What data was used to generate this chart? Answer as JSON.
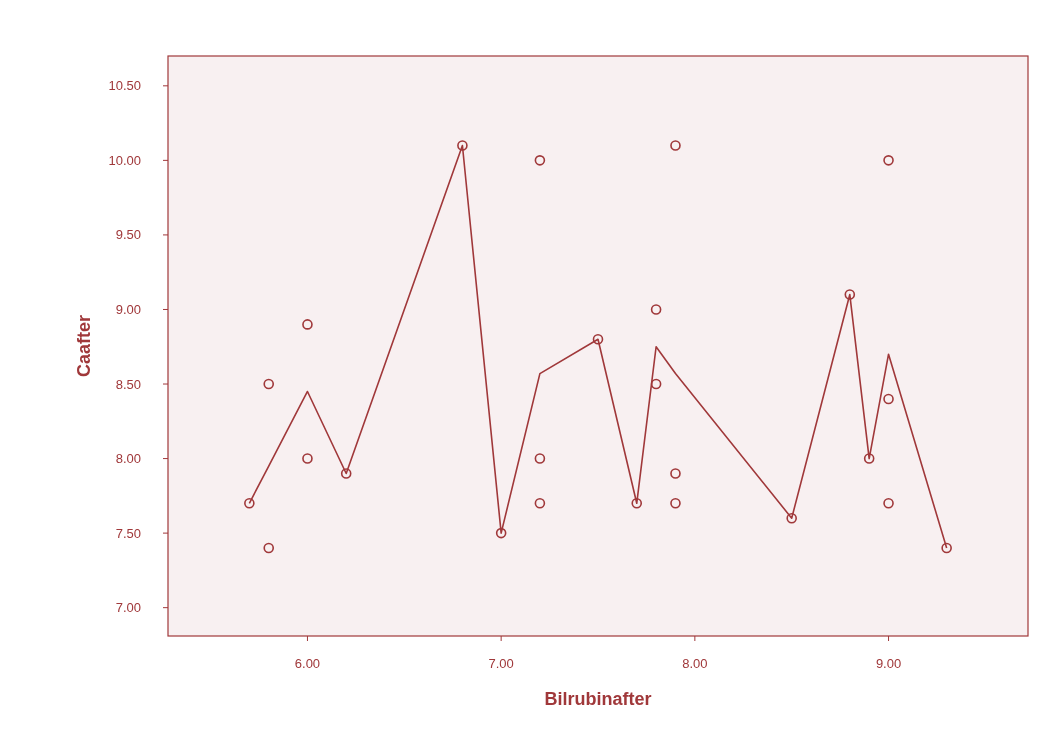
{
  "chart_data": {
    "type": "scatter",
    "xlabel": "Bilrubinafter",
    "ylabel": "Caafter",
    "xlim": [
      5.28,
      9.72
    ],
    "ylim": [
      6.81,
      10.7
    ],
    "xticks": [
      {
        "value": 6,
        "label": "6.00"
      },
      {
        "value": 7,
        "label": "7.00"
      },
      {
        "value": 8,
        "label": "8.00"
      },
      {
        "value": 9,
        "label": "9.00"
      }
    ],
    "yticks": [
      {
        "value": 7,
        "label": "7.00"
      },
      {
        "value": 7.5,
        "label": "7.50"
      },
      {
        "value": 8,
        "label": "8.00"
      },
      {
        "value": 8.5,
        "label": "8.50"
      },
      {
        "value": 9,
        "label": "9.00"
      },
      {
        "value": 9.5,
        "label": "9.50"
      },
      {
        "value": 10,
        "label": "10.00"
      },
      {
        "value": 10.5,
        "label": "10.50"
      }
    ],
    "grid": false,
    "marker": "circle",
    "series": [
      {
        "color": "#a0383a",
        "x": [
          5.7,
          5.8,
          5.8,
          6.0,
          6.0,
          6.2,
          6.8,
          7.0,
          7.2,
          7.2,
          7.2,
          7.5,
          7.7,
          7.8,
          7.8,
          7.9,
          7.9,
          7.9,
          8.5,
          8.8,
          8.9,
          9.0,
          9.0,
          9.0,
          9.3
        ],
        "values": [
          7.7,
          8.5,
          7.4,
          8.9,
          8.0,
          7.9,
          10.1,
          7.5,
          10.0,
          8.0,
          7.7,
          8.8,
          7.7,
          9.0,
          8.5,
          10.1,
          7.9,
          7.7,
          7.6,
          9.1,
          8.0,
          10.0,
          8.4,
          7.7,
          7.4
        ]
      },
      {
        "type": "line",
        "color": "#a0383a",
        "line_style": "solid",
        "marker": "none",
        "x": [
          5.7,
          5.8,
          6.0,
          6.2,
          6.8,
          7.0,
          7.2,
          7.5,
          7.7,
          7.8,
          7.9,
          8.5,
          8.8,
          8.9,
          9.0,
          9.3
        ],
        "values": [
          7.7,
          7.95,
          8.45,
          7.9,
          10.1,
          7.5,
          8.57,
          8.8,
          7.7,
          8.75,
          8.57,
          7.6,
          9.1,
          8.0,
          8.7,
          7.4
        ]
      }
    ]
  }
}
